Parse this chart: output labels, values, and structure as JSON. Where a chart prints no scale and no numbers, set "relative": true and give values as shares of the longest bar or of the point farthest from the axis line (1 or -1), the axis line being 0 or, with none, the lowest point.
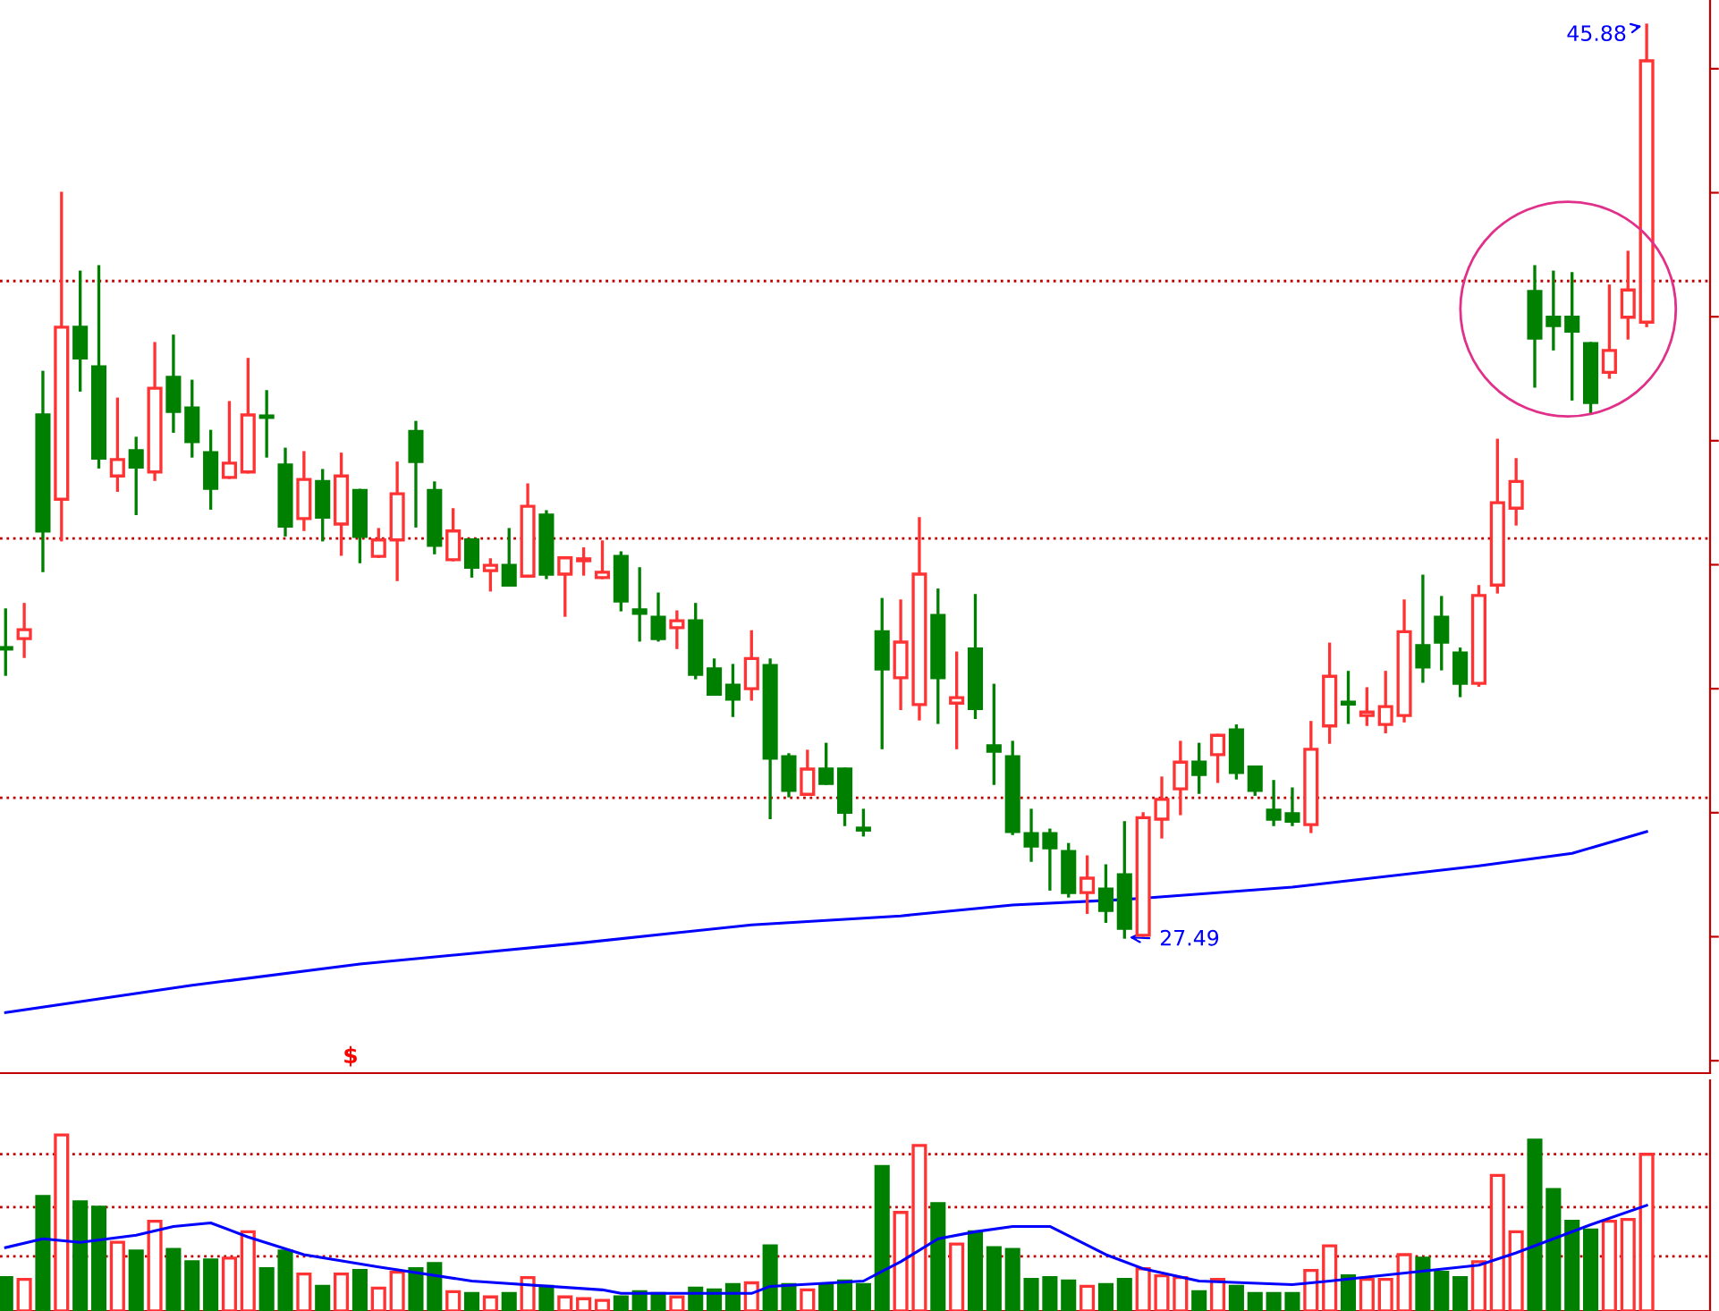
{
  "chart_data": [
    {
      "type": "candlestick",
      "tick_labels": false,
      "categories": [
        null,
        null,
        null,
        null,
        null,
        null,
        null,
        null,
        null,
        null,
        null,
        null,
        null,
        null,
        null,
        null,
        null,
        null,
        null,
        null,
        null,
        null,
        null,
        null,
        null,
        null,
        null,
        null,
        null,
        null,
        null,
        null,
        null,
        null,
        null,
        null,
        null,
        null,
        null,
        null,
        null,
        null,
        null,
        null,
        null,
        null,
        null,
        null,
        null,
        null,
        null,
        null,
        null,
        null,
        null,
        null,
        null,
        null,
        null,
        null,
        null,
        null,
        null,
        null,
        null,
        null,
        null,
        null,
        null,
        null,
        null,
        null,
        null,
        null,
        null,
        null,
        null,
        null,
        null,
        null,
        null,
        null,
        null,
        null,
        null,
        null,
        null,
        null,
        null
      ],
      "ohlc": [
        [
          33.33,
          34.09,
          32.79,
          33.3
        ],
        [
          33.51,
          34.2,
          33.15,
          33.69
        ],
        [
          38.02,
          38.88,
          34.88,
          35.68
        ],
        [
          36.32,
          42.49,
          35.5,
          39.79
        ],
        [
          39.79,
          40.9,
          38.52,
          39.17
        ],
        [
          38.99,
          41.01,
          36.97,
          37.15
        ],
        [
          36.79,
          38.34,
          36.5,
          37.12
        ],
        [
          37.3,
          37.55,
          36.03,
          36.97
        ],
        [
          36.87,
          39.46,
          36.72,
          38.56
        ],
        [
          38.78,
          39.61,
          37.69,
          38.09
        ],
        [
          38.16,
          38.7,
          37.19,
          37.48
        ],
        [
          37.26,
          37.69,
          36.14,
          36.54
        ],
        [
          36.76,
          38.27,
          36.76,
          37.05
        ],
        [
          36.87,
          39.14,
          36.87,
          38.02
        ],
        [
          38.0,
          38.49,
          37.19,
          37.97
        ],
        [
          37.01,
          37.33,
          35.6,
          35.78
        ],
        [
          35.93,
          37.26,
          35.71,
          36.72
        ],
        [
          36.68,
          36.9,
          35.5,
          35.96
        ],
        [
          35.82,
          37.23,
          35.21,
          36.79
        ],
        [
          36.5,
          36.5,
          35.06,
          35.57
        ],
        [
          35.17,
          35.71,
          35.17,
          35.5
        ],
        [
          35.5,
          37.05,
          34.7,
          36.43
        ],
        [
          37.69,
          37.87,
          35.78,
          37.08
        ],
        [
          36.5,
          36.65,
          35.24,
          35.39
        ],
        [
          35.1,
          36.11,
          35.1,
          35.68
        ],
        [
          35.5,
          35.5,
          34.77,
          34.95
        ],
        [
          34.88,
          35.1,
          34.49,
          34.99
        ],
        [
          34.99,
          35.71,
          34.59,
          34.59
        ],
        [
          34.77,
          36.61,
          34.77,
          36.18
        ],
        [
          36.0,
          36.07,
          34.74,
          34.81
        ],
        [
          34.81,
          35.14,
          33.98,
          35.14
        ],
        [
          35.08,
          35.32,
          34.81,
          35.12
        ],
        [
          34.74,
          35.46,
          34.74,
          34.85
        ],
        [
          35.17,
          35.24,
          34.09,
          34.27
        ],
        [
          34.09,
          34.92,
          33.48,
          34.02
        ],
        [
          33.94,
          34.41,
          33.48,
          33.51
        ],
        [
          33.73,
          34.05,
          33.33,
          33.87
        ],
        [
          33.87,
          34.2,
          32.72,
          32.79
        ],
        [
          32.9,
          33.08,
          32.39,
          32.39
        ],
        [
          32.57,
          32.97,
          31.96,
          32.29
        ],
        [
          32.5,
          33.65,
          32.29,
          33.11
        ],
        [
          32.97,
          33.08,
          29.9,
          31.1
        ],
        [
          31.13,
          31.17,
          30.34,
          30.45
        ],
        [
          30.37,
          31.24,
          30.37,
          30.88
        ],
        [
          30.88,
          31.38,
          30.59,
          30.59
        ],
        [
          30.88,
          30.88,
          29.76,
          30.01
        ],
        [
          29.69,
          30.05,
          29.55,
          29.65
        ],
        [
          33.65,
          34.3,
          31.31,
          32.9
        ],
        [
          32.72,
          34.27,
          32.1,
          33.44
        ],
        [
          32.18,
          35.93,
          31.89,
          34.81
        ],
        [
          33.98,
          34.49,
          31.82,
          32.72
        ],
        [
          32.21,
          33.22,
          31.31,
          32.32
        ],
        [
          33.3,
          34.38,
          31.92,
          32.1
        ],
        [
          31.35,
          32.57,
          30.59,
          31.24
        ],
        [
          31.13,
          31.42,
          29.58,
          29.62
        ],
        [
          29.58,
          30.05,
          29.04,
          29.33
        ],
        [
          29.58,
          29.65,
          28.46,
          29.29
        ],
        [
          29.22,
          29.36,
          28.32,
          28.39
        ],
        [
          28.39,
          29.11,
          27.99,
          28.68
        ],
        [
          28.46,
          28.93,
          27.81,
          28.03
        ],
        [
          28.75,
          29.8,
          27.49,
          27.67
        ],
        [
          27.53,
          29.98,
          27.53,
          29.9
        ],
        [
          29.87,
          30.7,
          29.51,
          30.27
        ],
        [
          30.48,
          31.42,
          29.98,
          31.02
        ],
        [
          31.02,
          31.38,
          30.41,
          30.77
        ],
        [
          31.17,
          31.56,
          30.63,
          31.56
        ],
        [
          31.67,
          31.75,
          30.7,
          30.81
        ],
        [
          30.92,
          30.92,
          30.37,
          30.45
        ],
        [
          30.05,
          30.63,
          29.76,
          29.87
        ],
        [
          29.98,
          30.48,
          29.76,
          29.83
        ],
        [
          29.76,
          31.82,
          29.62,
          31.28
        ],
        [
          31.75,
          33.4,
          31.42,
          32.75
        ],
        [
          32.23,
          32.83,
          31.82,
          32.19
        ],
        [
          31.96,
          32.5,
          31.78,
          32.03
        ],
        [
          31.78,
          32.83,
          31.63,
          32.14
        ],
        [
          31.96,
          34.27,
          31.85,
          33.65
        ],
        [
          33.37,
          34.77,
          32.65,
          32.94
        ],
        [
          33.94,
          34.34,
          32.9,
          33.44
        ],
        [
          33.22,
          33.3,
          32.36,
          32.61
        ],
        [
          32.61,
          34.56,
          32.57,
          34.38
        ],
        [
          34.59,
          37.51,
          34.45,
          36.25
        ],
        [
          36.14,
          37.12,
          35.82,
          36.68
        ],
        [
          40.51,
          41.01,
          38.6,
          39.57
        ],
        [
          39.99,
          40.9,
          39.35,
          39.82
        ],
        [
          39.99,
          40.87,
          38.34,
          39.71
        ],
        [
          39.46,
          39.46,
          38.06,
          38.27
        ],
        [
          38.88,
          40.62,
          38.78,
          39.32
        ],
        [
          39.99,
          41.3,
          39.57,
          40.54
        ],
        [
          39.89,
          45.88,
          39.82,
          45.16
        ]
      ],
      "colors": [
        "#008000",
        "#ff3333",
        "#008000",
        "#ff3333",
        "#008000",
        "#008000",
        "#ff3333",
        "#008000",
        "#ff3333",
        "#008000",
        "#008000",
        "#008000",
        "#ff3333",
        "#ff3333",
        "#008000",
        "#008000",
        "#ff3333",
        "#008000",
        "#ff3333",
        "#008000",
        "#ff3333",
        "#ff3333",
        "#008000",
        "#008000",
        "#ff3333",
        "#008000",
        "#ff3333",
        "#008000",
        "#ff3333",
        "#008000",
        "#ff3333",
        "#ff3333",
        "#ff3333",
        "#008000",
        "#008000",
        "#008000",
        "#ff3333",
        "#008000",
        "#008000",
        "#008000",
        "#ff3333",
        "#008000",
        "#008000",
        "#ff3333",
        "#008000",
        "#008000",
        "#008000",
        "#008000",
        "#ff3333",
        "#ff3333",
        "#008000",
        "#ff3333",
        "#008000",
        "#008000",
        "#008000",
        "#008000",
        "#008000",
        "#008000",
        "#ff3333",
        "#008000",
        "#008000",
        "#ff3333",
        "#ff3333",
        "#ff3333",
        "#008000",
        "#ff3333",
        "#008000",
        "#008000",
        "#008000",
        "#008000",
        "#ff3333",
        "#ff3333",
        "#008000",
        "#ff3333",
        "#ff3333",
        "#ff3333",
        "#008000",
        "#008000",
        "#008000",
        "#ff3333",
        "#ff3333",
        "#ff3333",
        "#008000",
        "#008000",
        "#008000",
        "#008000",
        "#ff3333",
        "#ff3333",
        "#ff3333"
      ],
      "series": [
        {
          "type": "line",
          "color": "#0000ff",
          "values": [
            25.97,
            null,
            null,
            null,
            null,
            null,
            null,
            null,
            null,
            null,
            26.52,
            null,
            null,
            null,
            null,
            null,
            null,
            null,
            null,
            26.95,
            null,
            null,
            null,
            null,
            null,
            null,
            null,
            null,
            null,
            null,
            null,
            27.38,
            null,
            null,
            null,
            null,
            null,
            null,
            null,
            null,
            27.74,
            null,
            null,
            null,
            null,
            null,
            null,
            null,
            27.92,
            null,
            null,
            null,
            null,
            null,
            28.14,
            null,
            null,
            null,
            null,
            null,
            28.25,
            null,
            null,
            null,
            null,
            null,
            null,
            null,
            null,
            28.5,
            null,
            null,
            null,
            null,
            null,
            null,
            null,
            null,
            null,
            28.93,
            null,
            null,
            null,
            null,
            29.18,
            null,
            null,
            null,
            29.62
          ]
        }
      ],
      "ref_lines": [
        {
          "axis": "y",
          "value": 40.72,
          "color": "#c00000",
          "line_style": "dotted"
        },
        {
          "axis": "y",
          "value": 35.53,
          "color": "#c00000",
          "line_style": "dotted"
        },
        {
          "axis": "y",
          "value": 30.3,
          "color": "#c00000",
          "line_style": "dotted"
        }
      ],
      "annotations": [
        "45.88",
        "27.49",
        "$"
      ]
    },
    {
      "type": "bar",
      "relative": true,
      "tick_labels": false,
      "categories": [
        null,
        null,
        null,
        null,
        null,
        null,
        null,
        null,
        null,
        null,
        null,
        null,
        null,
        null,
        null,
        null,
        null,
        null,
        null,
        null,
        null,
        null,
        null,
        null,
        null,
        null,
        null,
        null,
        null,
        null,
        null,
        null,
        null,
        null,
        null,
        null,
        null,
        null,
        null,
        null,
        null,
        null,
        null,
        null,
        null,
        null,
        null,
        null,
        null,
        null,
        null,
        null,
        null,
        null,
        null,
        null,
        null,
        null,
        null,
        null,
        null,
        null,
        null,
        null,
        null,
        null,
        null,
        null,
        null,
        null,
        null,
        null,
        null,
        null,
        null,
        null,
        null,
        null,
        null,
        null,
        null,
        null,
        null,
        null,
        null,
        null,
        null,
        null,
        null
      ],
      "series": [
        {
          "type": "bar",
          "values": [
            0.19,
            0.18,
            0.65,
            1,
            0.62,
            0.59,
            0.39,
            0.34,
            0.51,
            0.35,
            0.28,
            0.29,
            0.3,
            0.45,
            0.24,
            0.34,
            0.21,
            0.14,
            0.21,
            0.23,
            0.13,
            0.22,
            0.24,
            0.27,
            0.11,
            0.1,
            0.08,
            0.1,
            0.19,
            0.14,
            0.08,
            0.07,
            0.06,
            0.08,
            0.11,
            0.1,
            0.08,
            0.13,
            0.12,
            0.15,
            0.16,
            0.37,
            0.15,
            0.12,
            0.15,
            0.17,
            0.15,
            0.82,
            0.56,
            0.94,
            0.61,
            0.38,
            0.45,
            0.36,
            0.35,
            0.18,
            0.19,
            0.17,
            0.14,
            0.15,
            0.18,
            0.24,
            0.2,
            0.19,
            0.11,
            0.18,
            0.14,
            0.1,
            0.1,
            0.1,
            0.23,
            0.37,
            0.2,
            0.18,
            0.18,
            0.32,
            0.3,
            0.22,
            0.19,
            0.28,
            0.77,
            0.45,
            0.97,
            0.69,
            0.51,
            0.46,
            0.51,
            0.52,
            0.89
          ],
          "colors": [
            "#008000",
            "#ff3333",
            "#008000",
            "#ff3333",
            "#008000",
            "#008000",
            "#ff3333",
            "#008000",
            "#ff3333",
            "#008000",
            "#008000",
            "#008000",
            "#ff3333",
            "#ff3333",
            "#008000",
            "#008000",
            "#ff3333",
            "#008000",
            "#ff3333",
            "#008000",
            "#ff3333",
            "#ff3333",
            "#008000",
            "#008000",
            "#ff3333",
            "#008000",
            "#ff3333",
            "#008000",
            "#ff3333",
            "#008000",
            "#ff3333",
            "#ff3333",
            "#ff3333",
            "#008000",
            "#008000",
            "#008000",
            "#ff3333",
            "#008000",
            "#008000",
            "#008000",
            "#ff3333",
            "#008000",
            "#008000",
            "#ff3333",
            "#008000",
            "#008000",
            "#008000",
            "#008000",
            "#ff3333",
            "#ff3333",
            "#008000",
            "#ff3333",
            "#008000",
            "#008000",
            "#008000",
            "#008000",
            "#008000",
            "#008000",
            "#ff3333",
            "#008000",
            "#008000",
            "#ff3333",
            "#ff3333",
            "#ff3333",
            "#008000",
            "#ff3333",
            "#008000",
            "#008000",
            "#008000",
            "#008000",
            "#ff3333",
            "#ff3333",
            "#008000",
            "#ff3333",
            "#ff3333",
            "#ff3333",
            "#008000",
            "#008000",
            "#008000",
            "#ff3333",
            "#ff3333",
            "#ff3333",
            "#008000",
            "#008000",
            "#008000",
            "#008000",
            "#ff3333",
            "#ff3333",
            "#ff3333"
          ]
        },
        {
          "type": "line",
          "color": "#0000ff",
          "values": [
            0.36,
            null,
            0.41,
            null,
            0.39,
            null,
            null,
            0.43,
            null,
            0.48,
            null,
            0.5,
            null,
            0.42,
            null,
            null,
            0.32,
            null,
            null,
            null,
            0.25,
            null,
            null,
            null,
            null,
            0.17,
            null,
            null,
            null,
            null,
            null,
            null,
            0.12,
            0.1,
            null,
            null,
            null,
            null,
            null,
            null,
            0.1,
            0.14,
            null,
            null,
            null,
            null,
            0.17,
            null,
            0.28,
            null,
            0.41,
            null,
            0.45,
            null,
            0.48,
            null,
            0.48,
            null,
            null,
            0.32,
            null,
            0.24,
            null,
            null,
            0.17,
            null,
            null,
            null,
            null,
            0.15,
            null,
            0.17,
            null,
            null,
            null,
            null,
            null,
            null,
            null,
            0.26,
            null,
            0.33,
            null,
            null,
            null,
            0.49,
            null,
            null,
            0.6
          ]
        }
      ],
      "ref_lines": [
        {
          "axis": "y",
          "value": 0.89,
          "color": "#c00000",
          "line_style": "dotted"
        },
        {
          "axis": "y",
          "value": 0.59,
          "color": "#c00000",
          "line_style": "dotted"
        },
        {
          "axis": "y",
          "value": 0.31,
          "color": "#c00000",
          "line_style": "dotted"
        }
      ]
    }
  ]
}
